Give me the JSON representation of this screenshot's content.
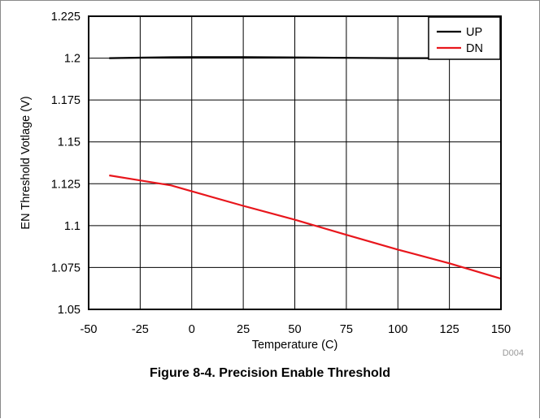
{
  "chart_data": {
    "type": "line",
    "title": "",
    "xlabel": "Temperature (C)",
    "ylabel": "EN Threshold Votlage (V)",
    "xlim": [
      -50,
      150
    ],
    "ylim": [
      1.05,
      1.225
    ],
    "xticks": [
      -50,
      -25,
      0,
      25,
      50,
      75,
      100,
      125,
      150
    ],
    "yticks": [
      1.05,
      1.075,
      1.1,
      1.125,
      1.15,
      1.175,
      1.2,
      1.225
    ],
    "grid": true,
    "legend_position": "top-right",
    "series": [
      {
        "name": "UP",
        "color": "#000000",
        "x": [
          -40,
          -25,
          -10,
          0,
          25,
          50,
          75,
          100,
          125
        ],
        "y": [
          1.2,
          1.2003,
          1.2005,
          1.2006,
          1.2006,
          1.2004,
          1.2002,
          1.2,
          1.2
        ]
      },
      {
        "name": "DN",
        "color": "#e8161c",
        "x": [
          -40,
          -25,
          -10,
          0,
          25,
          50,
          75,
          100,
          125,
          150
        ],
        "y": [
          1.13,
          1.127,
          1.124,
          1.1205,
          1.1118,
          1.1035,
          1.0945,
          1.0857,
          1.0775,
          1.0683
        ]
      }
    ],
    "code_label": "D004"
  },
  "caption": "Figure 8-4. Precision Enable Threshold"
}
